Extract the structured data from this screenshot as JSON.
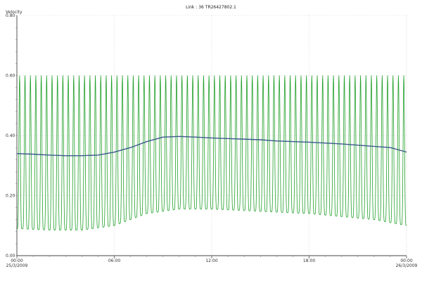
{
  "chart_data": {
    "type": "line",
    "title": "Link : 36 TR26427802.1",
    "ylabel": "Velocity",
    "xlabel": "",
    "ylim": [
      0,
      0.8
    ],
    "y_ticks": [
      "0.00",
      "0.20",
      "0.40",
      "0.60",
      "0.80"
    ],
    "x_ticks": [
      {
        "time": "00:00",
        "date": "25/3/2009",
        "hour": 0
      },
      {
        "time": "06:00",
        "date": "",
        "hour": 6
      },
      {
        "time": "12:00",
        "date": "",
        "hour": 12
      },
      {
        "time": "18:00",
        "date": "",
        "hour": 18
      },
      {
        "time": "00:00",
        "date": "26/3/2009",
        "hour": 24
      }
    ],
    "grid": true,
    "legend": "none",
    "series": [
      {
        "role": "velocity-oscillation",
        "color": "#22a02a",
        "oscillation_cycles": 72,
        "x_hours": [
          0,
          2,
          4,
          6,
          8,
          10,
          12,
          14,
          16,
          18,
          20,
          22,
          24
        ],
        "max": [
          0.6,
          0.6,
          0.6,
          0.6,
          0.6,
          0.6,
          0.6,
          0.6,
          0.6,
          0.6,
          0.6,
          0.6,
          0.6
        ],
        "min": [
          0.09,
          0.085,
          0.085,
          0.1,
          0.14,
          0.155,
          0.155,
          0.15,
          0.145,
          0.14,
          0.13,
          0.12,
          0.1
        ]
      },
      {
        "role": "velocity-mean",
        "color": "#3a5a8c",
        "x_hours": [
          0,
          1,
          2,
          3,
          4,
          5,
          6,
          7,
          8,
          9,
          10,
          11,
          12,
          13,
          14,
          15,
          16,
          17,
          18,
          19,
          20,
          21,
          22,
          23,
          24
        ],
        "values": [
          0.34,
          0.338,
          0.335,
          0.333,
          0.333,
          0.335,
          0.345,
          0.36,
          0.38,
          0.395,
          0.397,
          0.395,
          0.392,
          0.39,
          0.388,
          0.386,
          0.382,
          0.38,
          0.378,
          0.375,
          0.372,
          0.368,
          0.364,
          0.36,
          0.345
        ]
      }
    ]
  }
}
